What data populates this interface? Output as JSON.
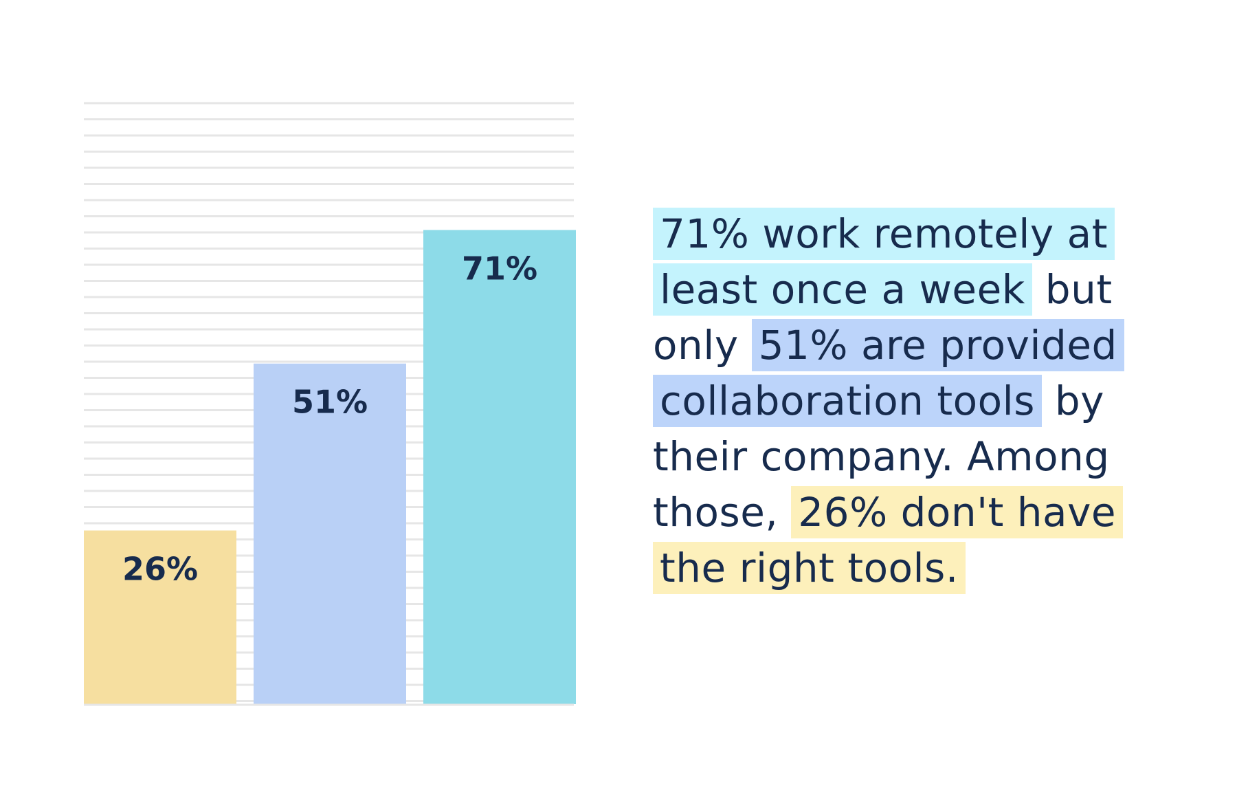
{
  "colors": {
    "text": "#172b4d",
    "gridline": "#e6e6e6",
    "bar_26": "#f6dfa0",
    "bar_51": "#b9d0f6",
    "bar_71": "#8ddbe8",
    "highlight_71": "#c4f3fd",
    "highlight_51": "#bcd4fa",
    "highlight_26": "#fdf0bb"
  },
  "chart_data": {
    "type": "bar",
    "categories": [
      "26%",
      "51%",
      "71%"
    ],
    "values": [
      26,
      51,
      71
    ],
    "data_labels": [
      "26%",
      "51%",
      "71%"
    ],
    "bar_colors": [
      "#f6dfa0",
      "#b9d0f6",
      "#8ddbe8"
    ],
    "ylim": [
      0,
      90
    ],
    "grid": true,
    "title": "",
    "xlabel": "",
    "ylabel": ""
  },
  "caption": {
    "part1_highlight": "71% work remotely at least once a week",
    "part2": " but only ",
    "part3_highlight": "51% are provided collaboration tools",
    "part4": " by their company. Among those, ",
    "part5_highlight": "26% don't have the right tools."
  }
}
